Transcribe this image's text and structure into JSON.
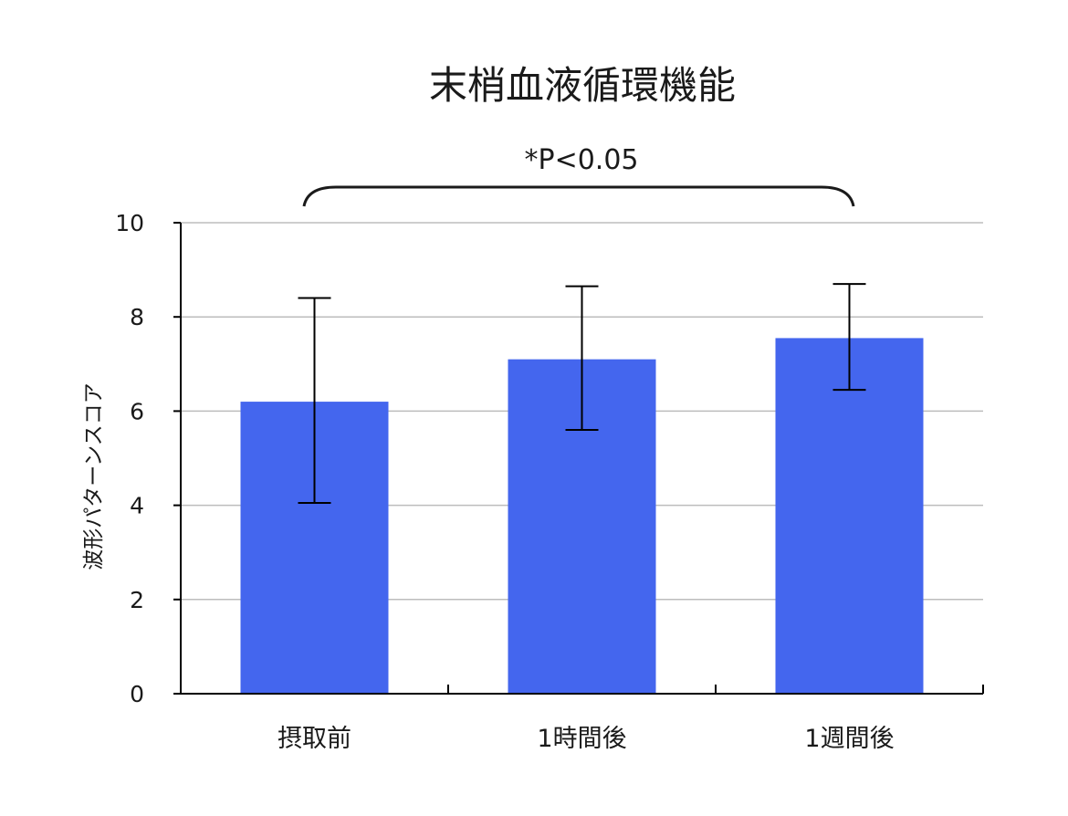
{
  "chart_data": {
    "type": "bar",
    "title": "末梢血液循環機能",
    "annotation": "*P<0.05",
    "ylabel": "波形パターンスコア",
    "xlabel": "",
    "categories": [
      "摂取前",
      "1時間後",
      "1週間後"
    ],
    "values": [
      6.2,
      7.1,
      7.55
    ],
    "error_bars": [
      {
        "low": 4.05,
        "high": 8.4
      },
      {
        "low": 5.6,
        "high": 8.65
      },
      {
        "low": 6.45,
        "high": 8.7
      }
    ],
    "ylim": [
      0,
      10
    ],
    "yticks": [
      "0",
      "2",
      "4",
      "6",
      "8",
      "10"
    ],
    "grid": true,
    "bar_color": "#4466ee",
    "grid_color": "#bdbdbd",
    "axis_color": "#000000",
    "text_color": "#1a1a1a"
  }
}
